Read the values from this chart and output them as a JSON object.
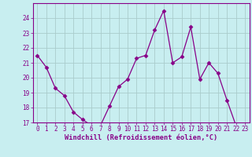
{
  "x": [
    0,
    1,
    2,
    3,
    4,
    5,
    6,
    7,
    8,
    9,
    10,
    11,
    12,
    13,
    14,
    15,
    16,
    17,
    18,
    19,
    20,
    21,
    22,
    23
  ],
  "y": [
    21.5,
    20.7,
    19.3,
    18.8,
    17.7,
    17.2,
    16.8,
    16.8,
    18.1,
    19.4,
    19.9,
    21.3,
    21.5,
    23.2,
    24.5,
    21.0,
    21.4,
    23.4,
    19.9,
    21.0,
    20.3,
    18.5,
    16.8,
    16.8
  ],
  "line_color": "#880088",
  "marker": "D",
  "marker_size": 2.5,
  "bg_color": "#c8eef0",
  "grid_color": "#aacccc",
  "xlabel": "Windchill (Refroidissement éolien,°C)",
  "ylim": [
    17,
    25
  ],
  "xlim": [
    -0.5,
    23.5
  ],
  "yticks": [
    17,
    18,
    19,
    20,
    21,
    22,
    23,
    24
  ],
  "xticks": [
    0,
    1,
    2,
    3,
    4,
    5,
    6,
    7,
    8,
    9,
    10,
    11,
    12,
    13,
    14,
    15,
    16,
    17,
    18,
    19,
    20,
    21,
    22,
    23
  ],
  "tick_color": "#880088",
  "label_color": "#880088",
  "spine_color": "#880088",
  "tick_fontsize": 5.5,
  "xlabel_fontsize": 6.2
}
